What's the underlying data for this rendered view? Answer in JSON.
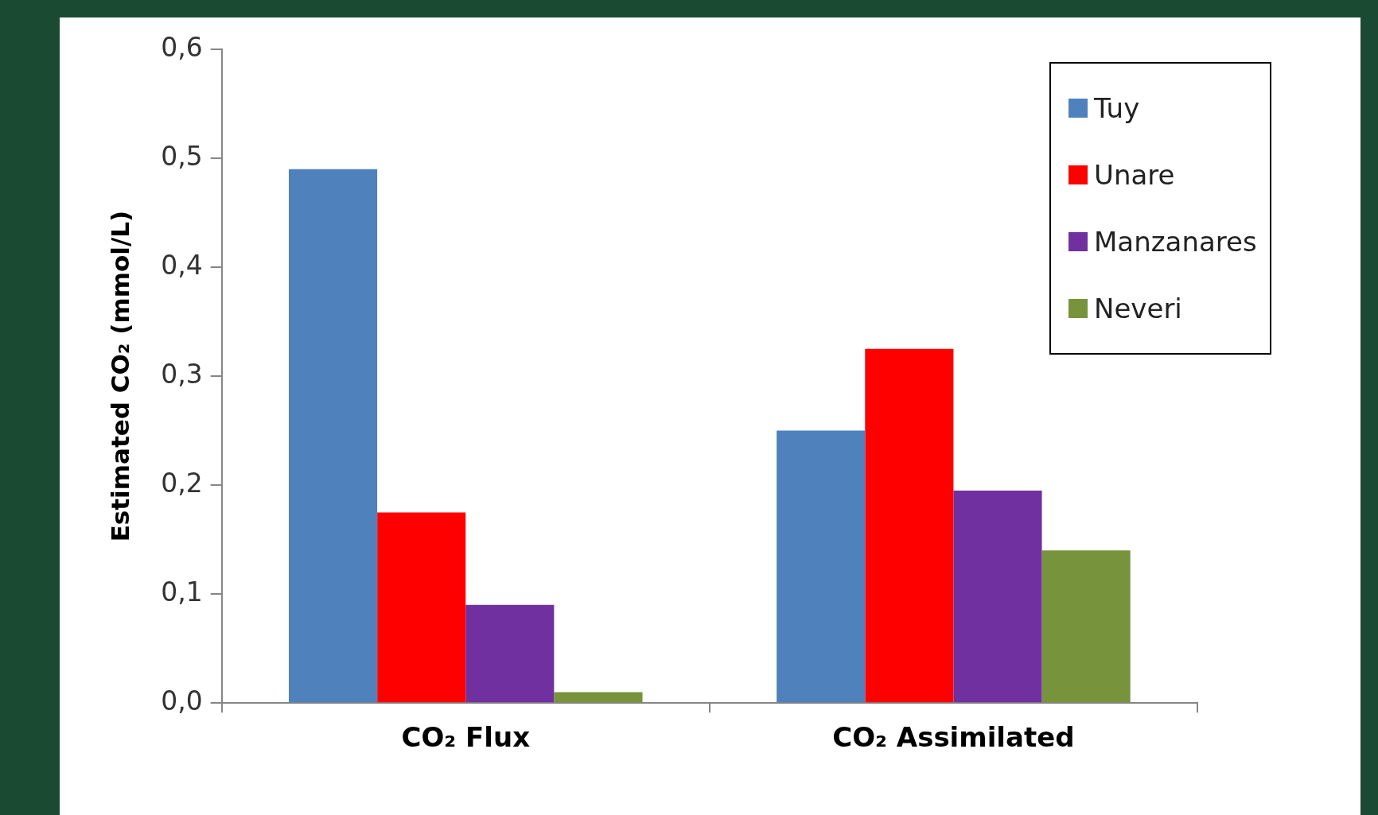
{
  "chart_data": {
    "type": "bar",
    "ylabel": "Estimated CO₂ (mmol/L)",
    "categories": [
      "CO₂ Flux",
      "CO₂ Assimilated"
    ],
    "series": [
      {
        "name": "Tuy",
        "color": "#4f81bd",
        "values": [
          0.49,
          0.25
        ]
      },
      {
        "name": "Unare",
        "color": "#ff0000",
        "values": [
          0.175,
          0.325
        ]
      },
      {
        "name": "Manzanares",
        "color": "#7030a0",
        "values": [
          0.09,
          0.195
        ]
      },
      {
        "name": "Neveri",
        "color": "#77933c",
        "values": [
          0.01,
          0.14
        ]
      }
    ],
    "ylim": [
      0,
      0.6
    ],
    "yticks": [
      {
        "value": 0,
        "label": "0,0"
      },
      {
        "value": 0.1,
        "label": "0,1"
      },
      {
        "value": 0.2,
        "label": "0,2"
      },
      {
        "value": 0.3,
        "label": "0,3"
      },
      {
        "value": 0.4,
        "label": "0,4"
      },
      {
        "value": 0.5,
        "label": "0,5"
      },
      {
        "value": 0.6,
        "label": "0,6"
      }
    ],
    "grid": false,
    "legend": "top right"
  }
}
